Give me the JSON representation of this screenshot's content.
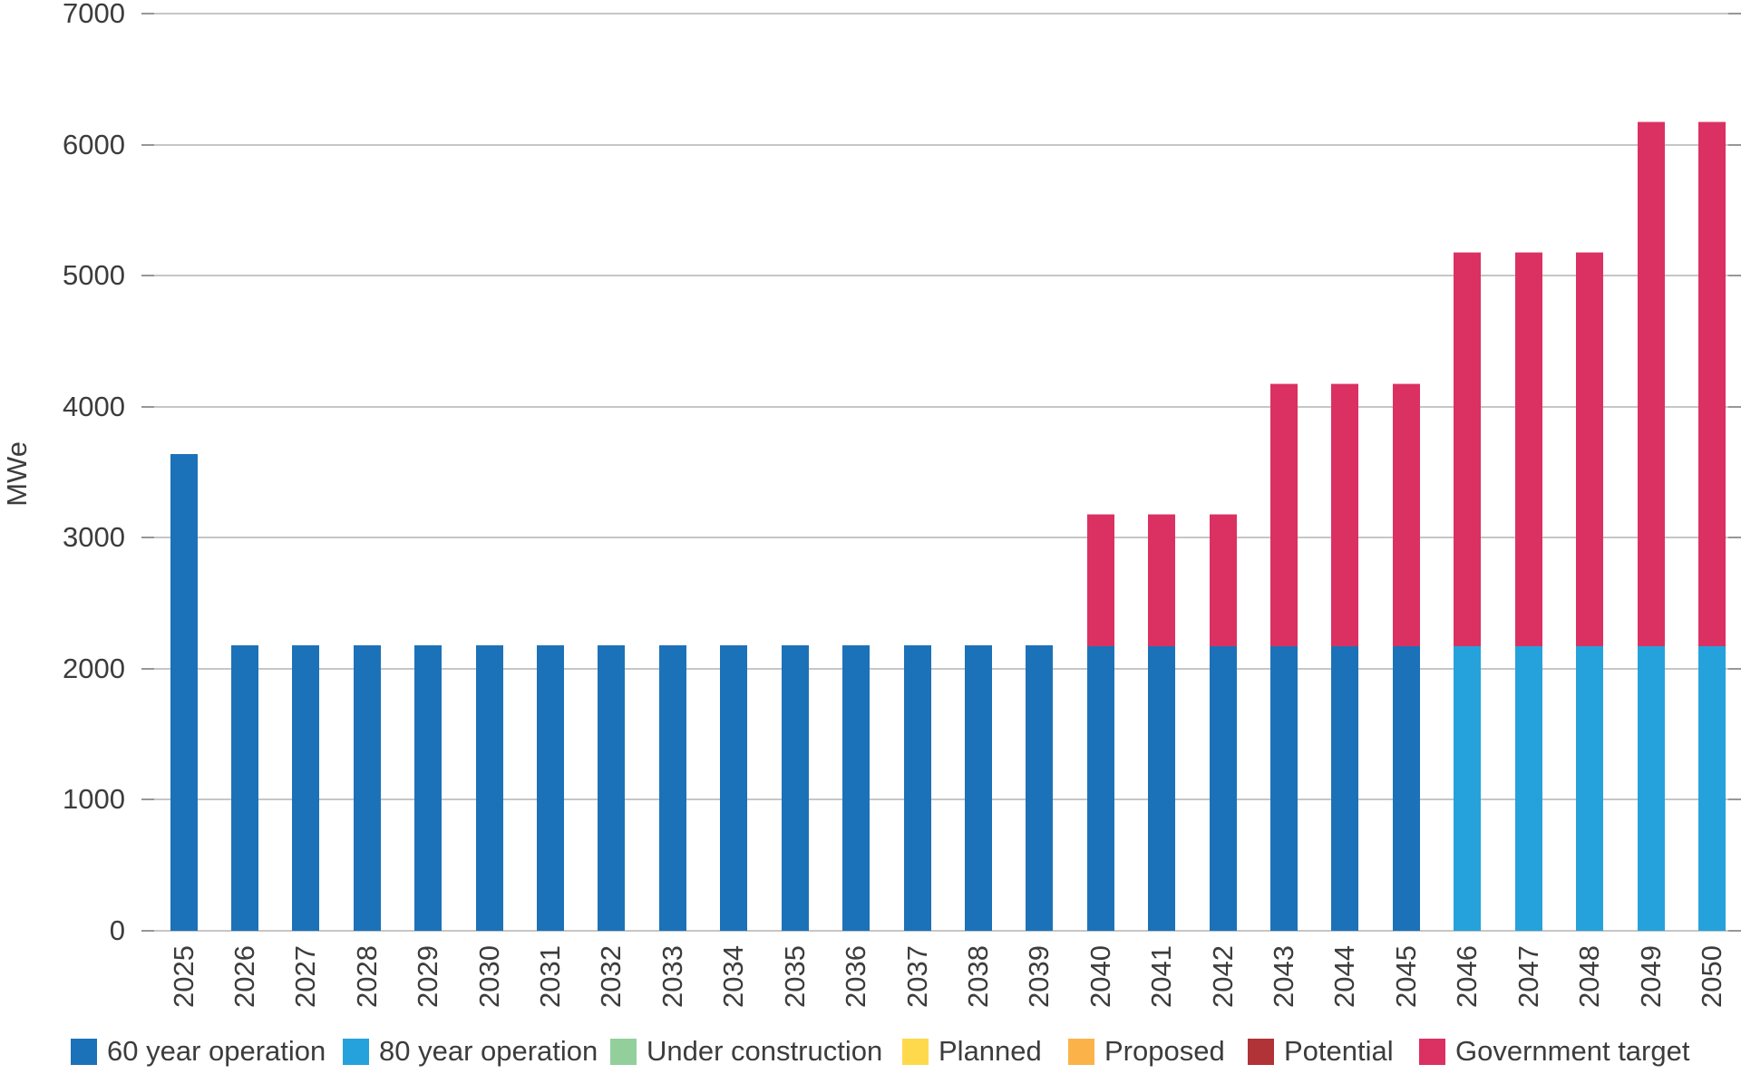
{
  "chart_data": {
    "type": "bar",
    "stacked": true,
    "title": "",
    "xlabel": "",
    "ylabel": "MWe",
    "ylim": [
      0,
      7000
    ],
    "yticks": [
      0,
      1000,
      2000,
      3000,
      4000,
      5000,
      6000,
      7000
    ],
    "grid": true,
    "legend_position": "bottom",
    "categories": [
      "2025",
      "2026",
      "2027",
      "2028",
      "2029",
      "2030",
      "2031",
      "2032",
      "2033",
      "2034",
      "2035",
      "2036",
      "2037",
      "2038",
      "2039",
      "2040",
      "2041",
      "2042",
      "2043",
      "2044",
      "2045",
      "2046",
      "2047",
      "2048",
      "2049",
      "2050"
    ],
    "series": [
      {
        "name": "60 year operation",
        "color": "#1C72B8",
        "values": [
          3640,
          2180,
          2180,
          2180,
          2180,
          2180,
          2180,
          2180,
          2180,
          2180,
          2180,
          2180,
          2180,
          2180,
          2180,
          2180,
          2180,
          2180,
          2180,
          2180,
          2180,
          0,
          0,
          0,
          0,
          0
        ]
      },
      {
        "name": "80 year operation",
        "color": "#25A2DB",
        "values": [
          0,
          0,
          0,
          0,
          0,
          0,
          0,
          0,
          0,
          0,
          0,
          0,
          0,
          0,
          0,
          0,
          0,
          0,
          0,
          0,
          0,
          2180,
          2180,
          2180,
          2180,
          2180
        ]
      },
      {
        "name": "Under construction",
        "color": "#92CF9B",
        "values": [
          0,
          0,
          0,
          0,
          0,
          0,
          0,
          0,
          0,
          0,
          0,
          0,
          0,
          0,
          0,
          0,
          0,
          0,
          0,
          0,
          0,
          0,
          0,
          0,
          0,
          0
        ]
      },
      {
        "name": "Planned",
        "color": "#FED94B",
        "values": [
          0,
          0,
          0,
          0,
          0,
          0,
          0,
          0,
          0,
          0,
          0,
          0,
          0,
          0,
          0,
          0,
          0,
          0,
          0,
          0,
          0,
          0,
          0,
          0,
          0,
          0
        ]
      },
      {
        "name": "Proposed",
        "color": "#FBB349",
        "values": [
          0,
          0,
          0,
          0,
          0,
          0,
          0,
          0,
          0,
          0,
          0,
          0,
          0,
          0,
          0,
          0,
          0,
          0,
          0,
          0,
          0,
          0,
          0,
          0,
          0,
          0
        ]
      },
      {
        "name": "Potential",
        "color": "#B13237",
        "values": [
          0,
          0,
          0,
          0,
          0,
          0,
          0,
          0,
          0,
          0,
          0,
          0,
          0,
          0,
          0,
          0,
          0,
          0,
          0,
          0,
          0,
          0,
          0,
          0,
          0,
          0
        ]
      },
      {
        "name": "Government target",
        "color": "#DB3162",
        "values": [
          0,
          0,
          0,
          0,
          0,
          0,
          0,
          0,
          0,
          0,
          0,
          0,
          0,
          0,
          0,
          1000,
          1000,
          1000,
          2000,
          2000,
          2000,
          3000,
          3000,
          3000,
          4000,
          4000
        ]
      }
    ]
  }
}
